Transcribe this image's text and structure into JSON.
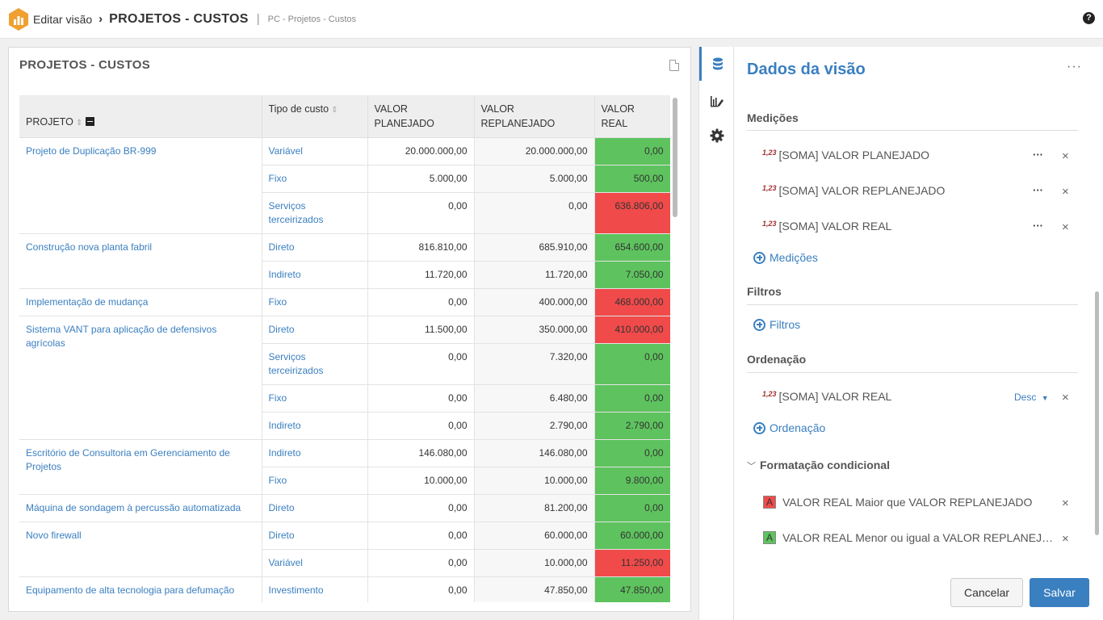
{
  "header": {
    "edit_label": "Editar visão",
    "separator": "›",
    "view_title": "PROJETOS - CUSTOS",
    "bar": "|",
    "subtitle": "PC - Projetos - Custos",
    "help": "?"
  },
  "card": {
    "title": "PROJETOS - CUSTOS"
  },
  "table": {
    "headers": [
      "PROJETO",
      "Tipo de custo",
      "VALOR PLANEJADO",
      "VALOR REPLANEJADO",
      "VALOR REAL"
    ],
    "header_lines": {
      "planejado_1": "VALOR",
      "planejado_2": "PLANEJADO",
      "replanejado_1": "VALOR",
      "replanejado_2": "REPLANEJADO",
      "real_1": "VALOR",
      "real_2": "REAL"
    },
    "rows": [
      {
        "projeto": "Projeto de Duplicação BR-999",
        "span": 3,
        "tipo": "Variável",
        "planejado": "20.000.000,00",
        "replanejado": "20.000.000,00",
        "real": "0,00",
        "status": "green"
      },
      {
        "tipo": "Fixo",
        "planejado": "5.000,00",
        "replanejado": "5.000,00",
        "real": "500,00",
        "status": "green"
      },
      {
        "tipo": "Serviços terceirizados",
        "planejado": "0,00",
        "replanejado": "0,00",
        "real": "636.806,00",
        "status": "red"
      },
      {
        "projeto": "Construção nova planta fabril",
        "span": 2,
        "tipo": "Direto",
        "planejado": "816.810,00",
        "replanejado": "685.910,00",
        "real": "654.600,00",
        "status": "green"
      },
      {
        "tipo": "Indireto",
        "planejado": "11.720,00",
        "replanejado": "11.720,00",
        "real": "7.050,00",
        "status": "green"
      },
      {
        "projeto": "Implementação de mudança",
        "span": 1,
        "tipo": "Fixo",
        "planejado": "0,00",
        "replanejado": "400.000,00",
        "real": "468.000,00",
        "status": "red"
      },
      {
        "projeto": "Sistema VANT para aplicação de defensivos agrícolas",
        "span": 4,
        "tipo": "Direto",
        "planejado": "11.500,00",
        "replanejado": "350.000,00",
        "real": "410.000,00",
        "status": "red"
      },
      {
        "tipo": "Serviços terceirizados",
        "planejado": "0,00",
        "replanejado": "7.320,00",
        "real": "0,00",
        "status": "green"
      },
      {
        "tipo": "Fixo",
        "planejado": "0,00",
        "replanejado": "6.480,00",
        "real": "0,00",
        "status": "green"
      },
      {
        "tipo": "Indireto",
        "planejado": "0,00",
        "replanejado": "2.790,00",
        "real": "2.790,00",
        "status": "green"
      },
      {
        "projeto": "Escritório de Consultoria em Gerenciamento de Projetos",
        "span": 2,
        "tipo": "Indireto",
        "planejado": "146.080,00",
        "replanejado": "146.080,00",
        "real": "0,00",
        "status": "green"
      },
      {
        "tipo": "Fixo",
        "planejado": "10.000,00",
        "replanejado": "10.000,00",
        "real": "9.800,00",
        "status": "green"
      },
      {
        "projeto": "Máquina de sondagem à percussão automatizada",
        "span": 1,
        "tipo": "Direto",
        "planejado": "0,00",
        "replanejado": "81.200,00",
        "real": "0,00",
        "status": "green"
      },
      {
        "projeto": "Novo firewall",
        "span": 2,
        "tipo": "Direto",
        "planejado": "0,00",
        "replanejado": "60.000,00",
        "real": "60.000,00",
        "status": "green"
      },
      {
        "tipo": "Variável",
        "planejado": "0,00",
        "replanejado": "10.000,00",
        "real": "11.250,00",
        "status": "red"
      },
      {
        "projeto": "Equipamento de alta tecnologia para defumação",
        "span": 1,
        "tipo": "Investimento",
        "planejado": "0,00",
        "replanejado": "47.850,00",
        "real": "47.850,00",
        "status": "green"
      }
    ]
  },
  "panel": {
    "title": "Dados da visão",
    "more": "···",
    "medicoes_title": "Medições",
    "medicoes": [
      {
        "tag": "1,23",
        "label": "[SOMA] VALOR PLANEJADO"
      },
      {
        "tag": "1,23",
        "label": "[SOMA] VALOR REPLANEJADO"
      },
      {
        "tag": "1,23",
        "label": "[SOMA] VALOR REAL"
      }
    ],
    "add_medicoes": "Medições",
    "filtros_title": "Filtros",
    "add_filtros": "Filtros",
    "ordenacao_title": "Ordenação",
    "ordenacao_item": {
      "tag": "1,23",
      "label": "[SOMA] VALOR REAL",
      "direction": "Desc"
    },
    "add_ordenacao": "Ordenação",
    "formatacao_title": "Formatação condicional",
    "formatacao": [
      {
        "letter": "A",
        "color": "#f04a4a",
        "label": "VALOR REAL Maior que VALOR REPLANEJADO"
      },
      {
        "letter": "A",
        "color": "#5ec35e",
        "label": "VALOR REAL Menor ou igual a VALOR REPLANEJADO"
      }
    ],
    "cancel": "Cancelar",
    "save": "Salvar"
  },
  "colors": {
    "accent": "#3a7fc0",
    "red": "#f04a4a",
    "green": "#5ec35e",
    "logo": "#f0a030"
  }
}
